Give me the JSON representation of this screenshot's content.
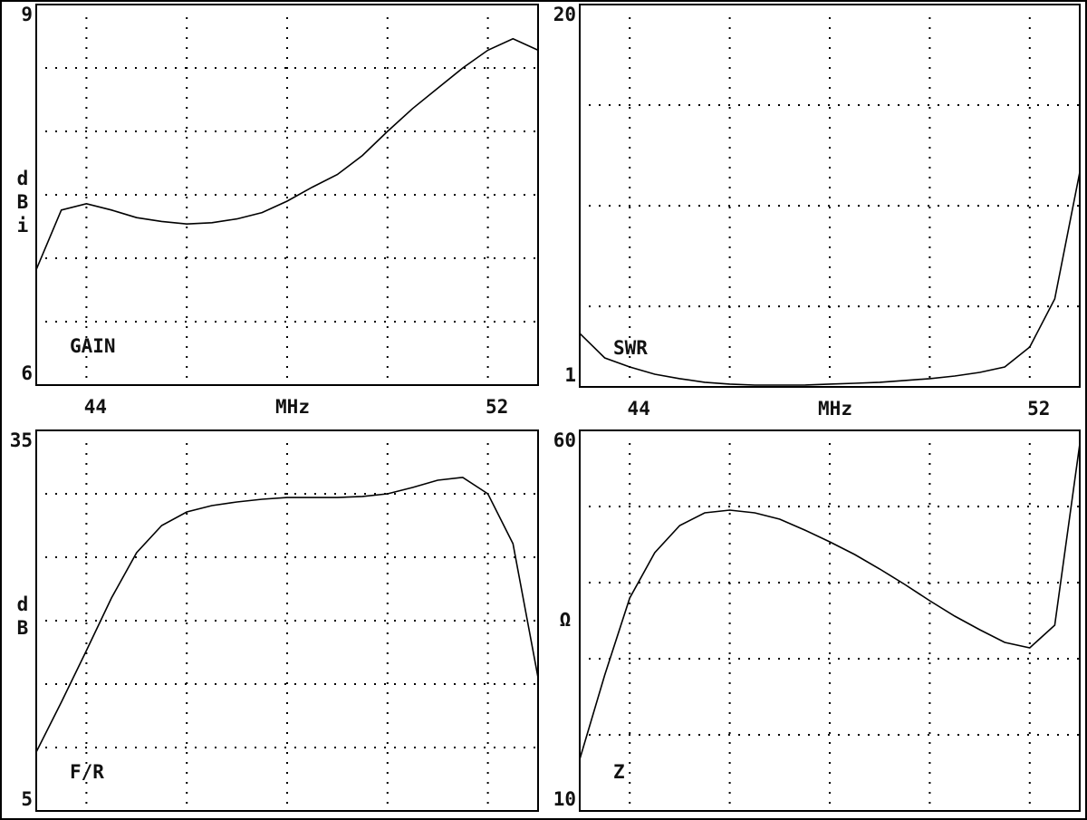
{
  "chart_data": [
    {
      "type": "line",
      "label": "GAIN",
      "ylabel": "dBi",
      "xlabel": "MHz",
      "x": [
        43,
        43.5,
        44,
        44.5,
        45,
        45.5,
        46,
        46.5,
        47,
        47.5,
        48,
        48.5,
        49,
        49.5,
        50,
        50.5,
        51,
        51.5,
        52,
        52.5,
        53
      ],
      "values": [
        6.91,
        7.38,
        7.43,
        7.38,
        7.32,
        7.29,
        7.27,
        7.28,
        7.31,
        7.36,
        7.45,
        7.56,
        7.66,
        7.81,
        8.0,
        8.18,
        8.34,
        8.5,
        8.64,
        8.73,
        8.64
      ],
      "color": "#000000",
      "xlim": [
        43,
        53
      ],
      "xticks": [
        44,
        52
      ],
      "xgrid": [
        44,
        46,
        48,
        50,
        52
      ],
      "ylim": [
        6,
        9
      ],
      "yticks": [
        6,
        9
      ],
      "ygrid": [
        6.5,
        7,
        7.5,
        8,
        8.5
      ]
    },
    {
      "type": "line",
      "label": "SWR",
      "xlabel": "MHz",
      "x": [
        43,
        43.5,
        44,
        44.5,
        45,
        45.5,
        46,
        46.5,
        47,
        47.5,
        48,
        48.5,
        49,
        49.5,
        50,
        50.5,
        51,
        51.5,
        52,
        52.5,
        53
      ],
      "values": [
        3.66,
        2.44,
        1.99,
        1.63,
        1.41,
        1.23,
        1.14,
        1.09,
        1.09,
        1.09,
        1.14,
        1.18,
        1.23,
        1.32,
        1.41,
        1.54,
        1.72,
        1.99,
        2.98,
        5.37,
        11.67
      ],
      "color": "#000000",
      "xlim": [
        43,
        53
      ],
      "xticks": [
        44,
        52
      ],
      "xgrid": [
        44,
        46,
        48,
        50,
        52
      ],
      "ylim": [
        1,
        20
      ],
      "yticks": [
        1,
        20
      ],
      "ygrid": [
        5,
        10,
        15
      ]
    },
    {
      "type": "line",
      "label": "F/R",
      "ylabel": "dB",
      "x": [
        43,
        43.5,
        44,
        44.5,
        45,
        45.5,
        46,
        46.5,
        47,
        47.5,
        48,
        48.5,
        49,
        49.5,
        50,
        50.5,
        51,
        51.5,
        52,
        52.5,
        53
      ],
      "values": [
        9.64,
        13.57,
        17.64,
        21.79,
        25.36,
        27.5,
        28.57,
        29.07,
        29.36,
        29.57,
        29.71,
        29.71,
        29.71,
        29.79,
        30.0,
        30.5,
        31.07,
        31.29,
        30.0,
        26.07,
        15.5
      ],
      "color": "#000000",
      "xlim": [
        43,
        53
      ],
      "xgrid": [
        44,
        46,
        48,
        50,
        52
      ],
      "ylim": [
        5,
        35
      ],
      "yticks": [
        5,
        35
      ],
      "ygrid": [
        10,
        15,
        20,
        25,
        30
      ]
    },
    {
      "type": "line",
      "label": "Z",
      "ylabel": "Ω",
      "x": [
        43,
        43.5,
        44,
        44.5,
        45,
        45.5,
        46,
        46.5,
        47,
        47.5,
        48,
        48.5,
        49,
        49.5,
        50,
        50.5,
        51,
        51.5,
        52,
        52.5,
        53
      ],
      "values": [
        16.79,
        27.86,
        37.98,
        43.93,
        47.5,
        49.17,
        49.52,
        49.17,
        48.33,
        46.9,
        45.36,
        43.69,
        41.79,
        39.76,
        37.62,
        35.6,
        33.81,
        32.14,
        31.43,
        34.4,
        58.21
      ],
      "color": "#000000",
      "xlim": [
        43,
        53
      ],
      "xgrid": [
        44,
        46,
        48,
        50,
        52
      ],
      "ylim": [
        10,
        60
      ],
      "yticks": [
        10,
        60
      ],
      "ygrid": [
        20,
        30,
        40,
        50
      ]
    }
  ]
}
